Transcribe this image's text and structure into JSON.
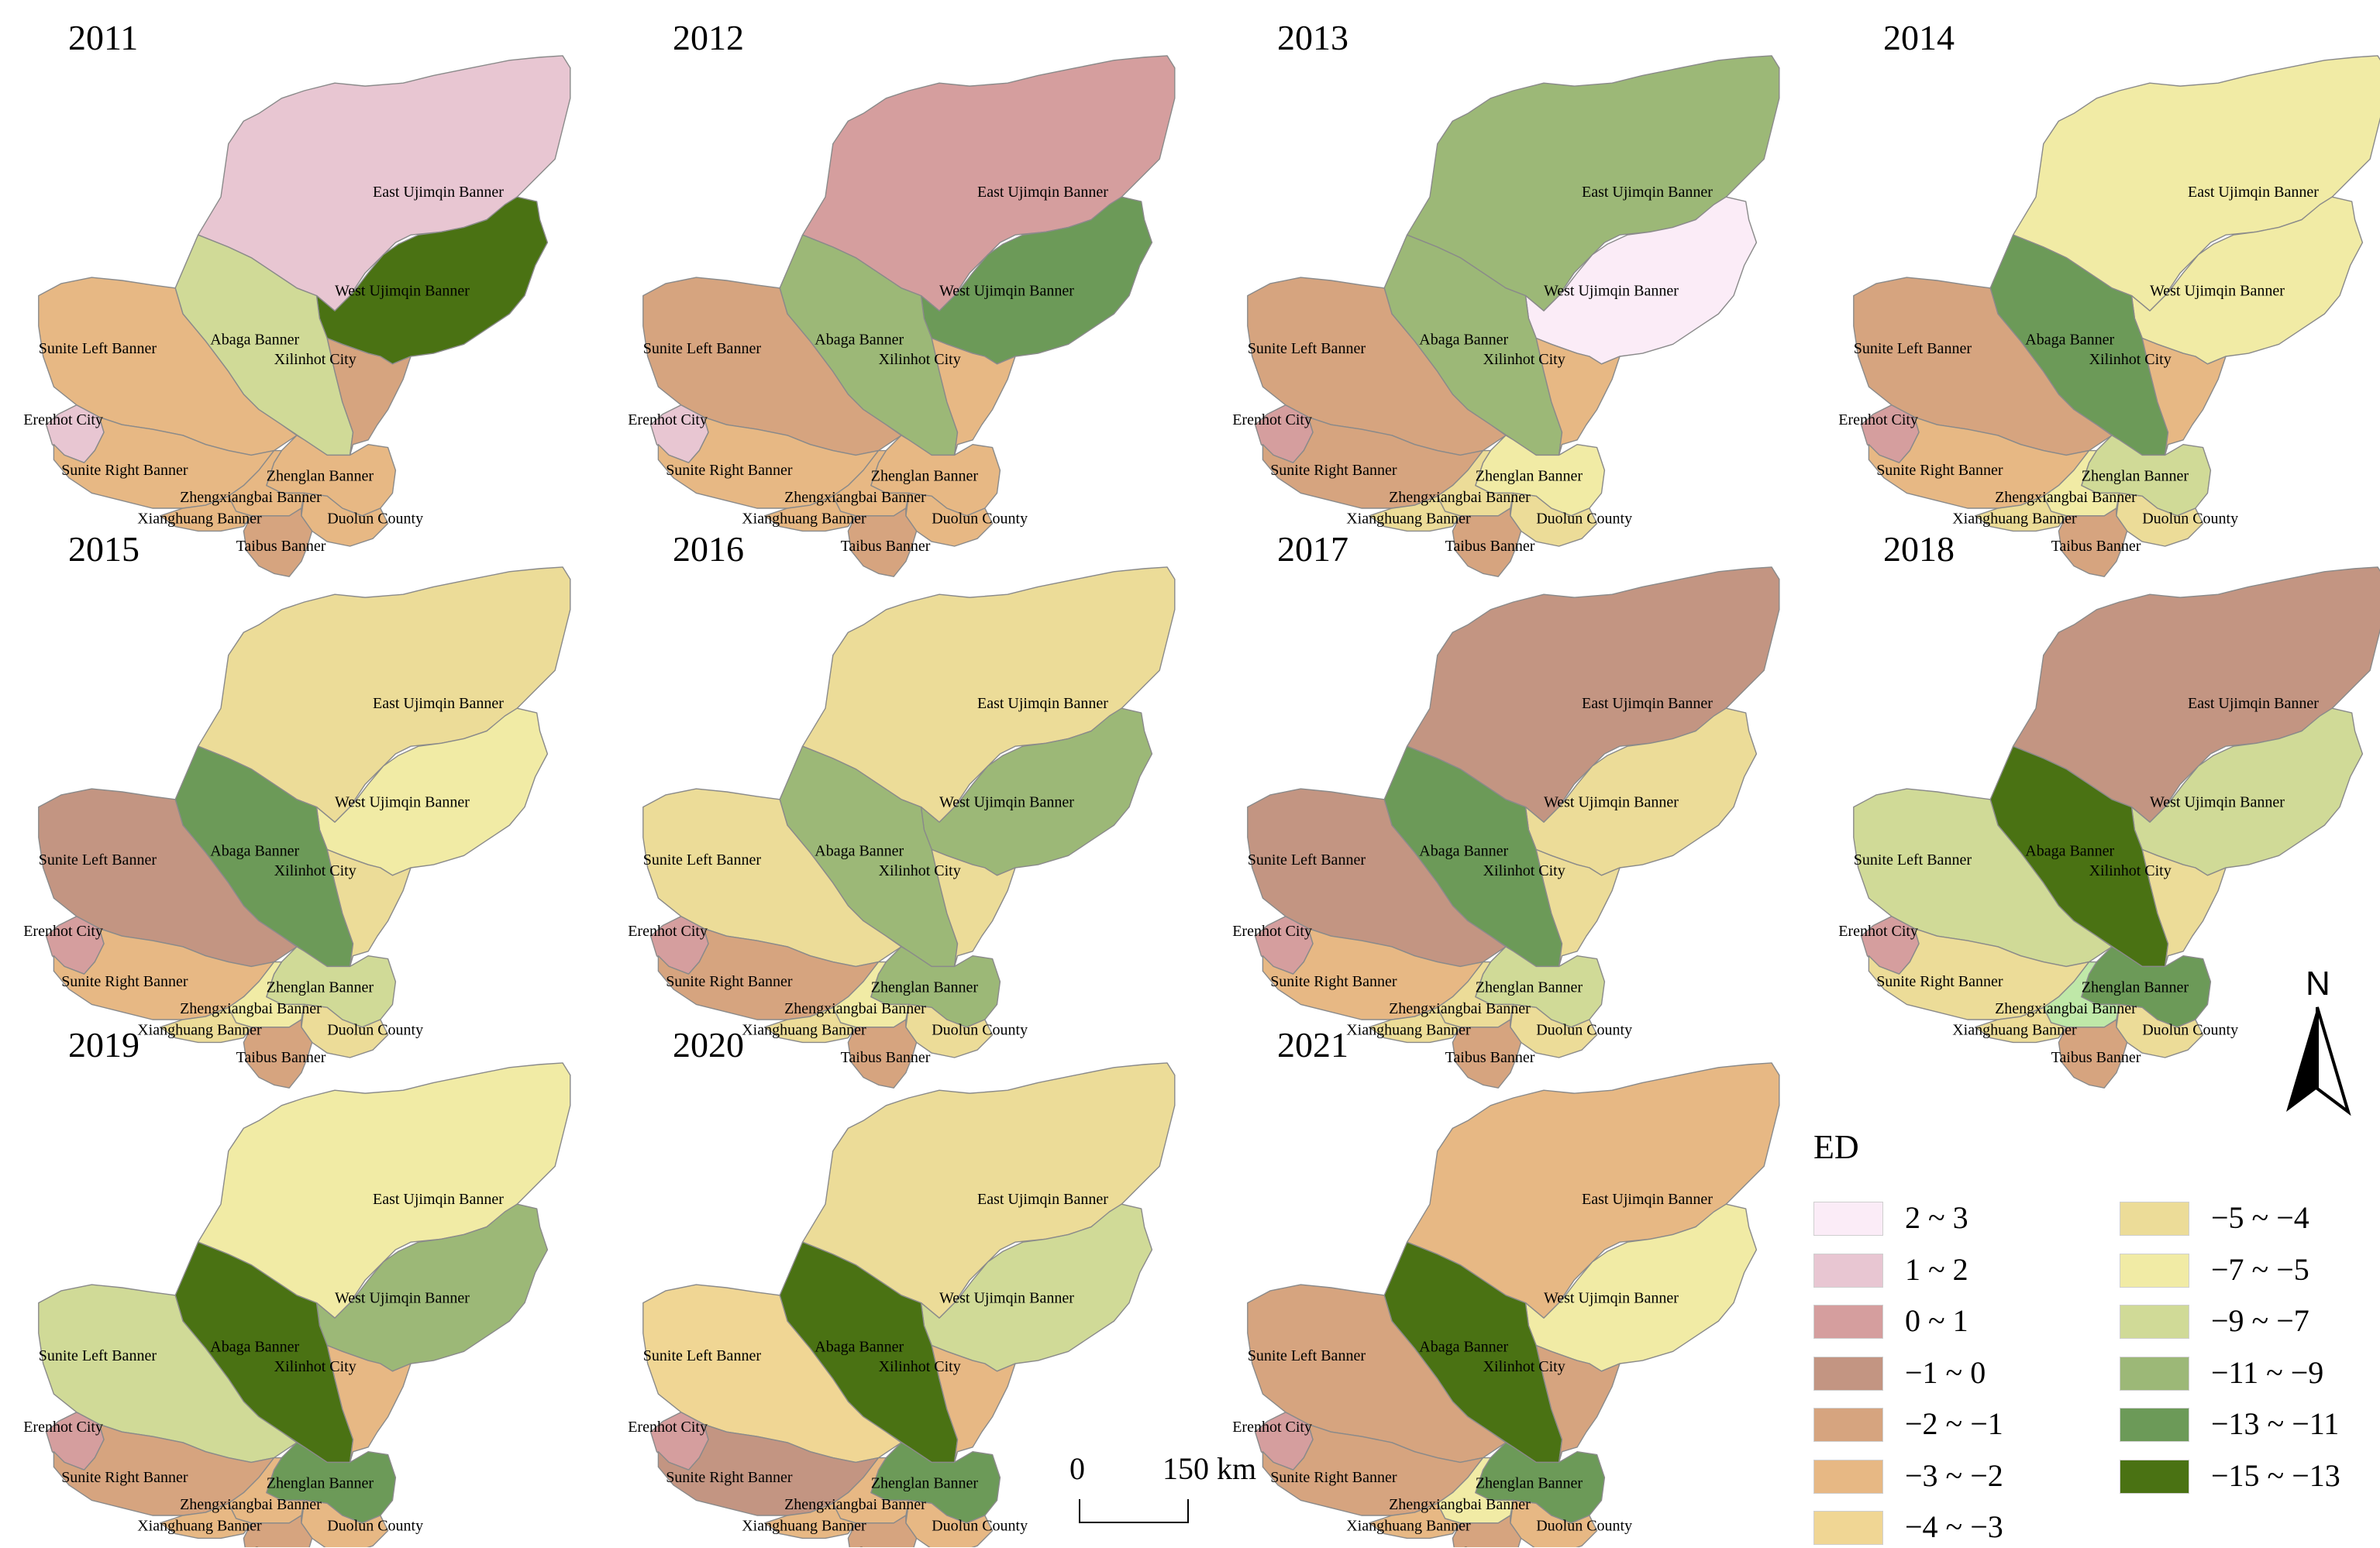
{
  "legend": {
    "title": "ED",
    "classes": [
      {
        "label": "2 ~ 3",
        "color": "#fbecf7"
      },
      {
        "label": "1 ~ 2",
        "color": "#e8c6d2"
      },
      {
        "label": "0 ~ 1",
        "color": "#d59e9e"
      },
      {
        "label": "−1 ~ 0",
        "color": "#c39582"
      },
      {
        "label": "−2 ~ −1",
        "color": "#d6a47f"
      },
      {
        "label": "−3 ~ −2",
        "color": "#e7b884"
      },
      {
        "label": "−4 ~ −3",
        "color": "#f0d694"
      },
      {
        "label": "−5 ~ −4",
        "color": "#ecdc98"
      },
      {
        "label": "−7 ~ −5",
        "color": "#f1eba5"
      },
      {
        "label": "−9 ~ −7",
        "color": "#d0da97"
      },
      {
        "label": "−11 ~ −9",
        "color": "#9cb877"
      },
      {
        "label": "−13 ~ −11",
        "color": "#6c9a58"
      },
      {
        "label": "−15 ~ −13",
        "color": "#4a7213"
      }
    ],
    "extra_color_2018_zhengxiangbai": "#bfe8a8"
  },
  "north_arrow": {
    "letter": "N"
  },
  "scale_bar": {
    "start": "0",
    "end": "150 km"
  },
  "region_labels": {
    "east_ujimqin": "East Ujimqin Banner",
    "west_ujimqin": "West Ujimqin Banner",
    "abaga": "Abaga Banner",
    "sunite_left": "Sunite Left Banner",
    "xilinhot": "Xilinhot City",
    "erenhot": "Erenhot City",
    "sunite_right": "Sunite Right Banner",
    "zhenglan": "Zhenglan Banner",
    "zhengxiangbai": "Zhengxiangbai Banner",
    "xianghuang": "Xianghuang Banner",
    "duolun": "Duolun County",
    "taibus": "Taibus Banner"
  },
  "panels": [
    {
      "year": "2011",
      "classes": {
        "east_ujimqin": "1 ~ 2",
        "west_ujimqin": "−15 ~ −13",
        "abaga": "−9 ~ −7",
        "sunite_left": "−3 ~ −2",
        "xilinhot": "−2 ~ −1",
        "erenhot": "1 ~ 2",
        "sunite_right": "−3 ~ −2",
        "zhenglan": "−3 ~ −2",
        "zhengxiangbai": "−3 ~ −2",
        "xianghuang": "−3 ~ −2",
        "duolun": "−3 ~ −2",
        "taibus": "−2 ~ −1"
      }
    },
    {
      "year": "2012",
      "classes": {
        "east_ujimqin": "0 ~ 1",
        "west_ujimqin": "−13 ~ −11",
        "abaga": "−11 ~ −9",
        "sunite_left": "−2 ~ −1",
        "xilinhot": "−3 ~ −2",
        "erenhot": "1 ~ 2",
        "sunite_right": "−3 ~ −2",
        "zhenglan": "−3 ~ −2",
        "zhengxiangbai": "−3 ~ −2",
        "xianghuang": "−3 ~ −2",
        "duolun": "−3 ~ −2",
        "taibus": "−2 ~ −1"
      }
    },
    {
      "year": "2013",
      "classes": {
        "east_ujimqin": "−11 ~ −9",
        "west_ujimqin": "2 ~ 3",
        "abaga": "−11 ~ −9",
        "sunite_left": "−2 ~ −1",
        "xilinhot": "−3 ~ −2",
        "erenhot": "0 ~ 1",
        "sunite_right": "−2 ~ −1",
        "zhenglan": "−7 ~ −5",
        "zhengxiangbai": "−5 ~ −4",
        "xianghuang": "−5 ~ −4",
        "duolun": "−5 ~ −4",
        "taibus": "−2 ~ −1"
      }
    },
    {
      "year": "2014",
      "classes": {
        "east_ujimqin": "−7 ~ −5",
        "west_ujimqin": "−7 ~ −5",
        "abaga": "−13 ~ −11",
        "sunite_left": "−2 ~ −1",
        "xilinhot": "−3 ~ −2",
        "erenhot": "0 ~ 1",
        "sunite_right": "−3 ~ −2",
        "zhenglan": "−9 ~ −7",
        "zhengxiangbai": "−7 ~ −5",
        "xianghuang": "−5 ~ −4",
        "duolun": "−5 ~ −4",
        "taibus": "−2 ~ −1"
      }
    },
    {
      "year": "2015",
      "classes": {
        "east_ujimqin": "−5 ~ −4",
        "west_ujimqin": "−7 ~ −5",
        "abaga": "−13 ~ −11",
        "sunite_left": "−1 ~ 0",
        "xilinhot": "−5 ~ −4",
        "erenhot": "0 ~ 1",
        "sunite_right": "−3 ~ −2",
        "zhenglan": "−9 ~ −7",
        "zhengxiangbai": "−7 ~ −5",
        "xianghuang": "−5 ~ −4",
        "duolun": "−5 ~ −4",
        "taibus": "−2 ~ −1"
      }
    },
    {
      "year": "2016",
      "classes": {
        "east_ujimqin": "−5 ~ −4",
        "west_ujimqin": "−11 ~ −9",
        "abaga": "−11 ~ −9",
        "sunite_left": "−5 ~ −4",
        "xilinhot": "−5 ~ −4",
        "erenhot": "0 ~ 1",
        "sunite_right": "−2 ~ −1",
        "zhenglan": "−11 ~ −9",
        "zhengxiangbai": "−7 ~ −5",
        "xianghuang": "−5 ~ −4",
        "duolun": "−5 ~ −4",
        "taibus": "−2 ~ −1"
      }
    },
    {
      "year": "2017",
      "classes": {
        "east_ujimqin": "−1 ~ 0",
        "west_ujimqin": "−5 ~ −4",
        "abaga": "−13 ~ −11",
        "sunite_left": "−1 ~ 0",
        "xilinhot": "−5 ~ −4",
        "erenhot": "0 ~ 1",
        "sunite_right": "−3 ~ −2",
        "zhenglan": "−9 ~ −7",
        "zhengxiangbai": "−5 ~ −4",
        "xianghuang": "−5 ~ −4",
        "duolun": "−5 ~ −4",
        "taibus": "−2 ~ −1"
      }
    },
    {
      "year": "2018",
      "classes": {
        "east_ujimqin": "−1 ~ 0",
        "west_ujimqin": "−9 ~ −7",
        "abaga": "−15 ~ −13",
        "sunite_left": "−9 ~ −7",
        "xilinhot": "−5 ~ −4",
        "erenhot": "0 ~ 1",
        "sunite_right": "−5 ~ −4",
        "zhenglan": "−13 ~ −11",
        "zhengxiangbai": "extra",
        "xianghuang": "−5 ~ −4",
        "duolun": "−5 ~ −4",
        "taibus": "−2 ~ −1"
      }
    },
    {
      "year": "2019",
      "classes": {
        "east_ujimqin": "−7 ~ −5",
        "west_ujimqin": "−11 ~ −9",
        "abaga": "−15 ~ −13",
        "sunite_left": "−9 ~ −7",
        "xilinhot": "−3 ~ −2",
        "erenhot": "0 ~ 1",
        "sunite_right": "−2 ~ −1",
        "zhenglan": "−13 ~ −11",
        "zhengxiangbai": "−3 ~ −2",
        "xianghuang": "−3 ~ −2",
        "duolun": "−3 ~ −2",
        "taibus": "−2 ~ −1"
      }
    },
    {
      "year": "2020",
      "classes": {
        "east_ujimqin": "−5 ~ −4",
        "west_ujimqin": "−9 ~ −7",
        "abaga": "−15 ~ −13",
        "sunite_left": "−4 ~ −3",
        "xilinhot": "−3 ~ −2",
        "erenhot": "0 ~ 1",
        "sunite_right": "−1 ~ 0",
        "zhenglan": "−13 ~ −11",
        "zhengxiangbai": "−3 ~ −2",
        "xianghuang": "−3 ~ −2",
        "duolun": "−3 ~ −2",
        "taibus": "−2 ~ −1"
      }
    },
    {
      "year": "2021",
      "classes": {
        "east_ujimqin": "−3 ~ −2",
        "west_ujimqin": "−7 ~ −5",
        "abaga": "−15 ~ −13",
        "sunite_left": "−2 ~ −1",
        "xilinhot": "−2 ~ −1",
        "erenhot": "0 ~ 1",
        "sunite_right": "−2 ~ −1",
        "zhenglan": "−13 ~ −11",
        "zhengxiangbai": "−7 ~ −5",
        "xianghuang": "−3 ~ −2",
        "duolun": "−3 ~ −2",
        "taibus": "−2 ~ −1"
      }
    }
  ]
}
